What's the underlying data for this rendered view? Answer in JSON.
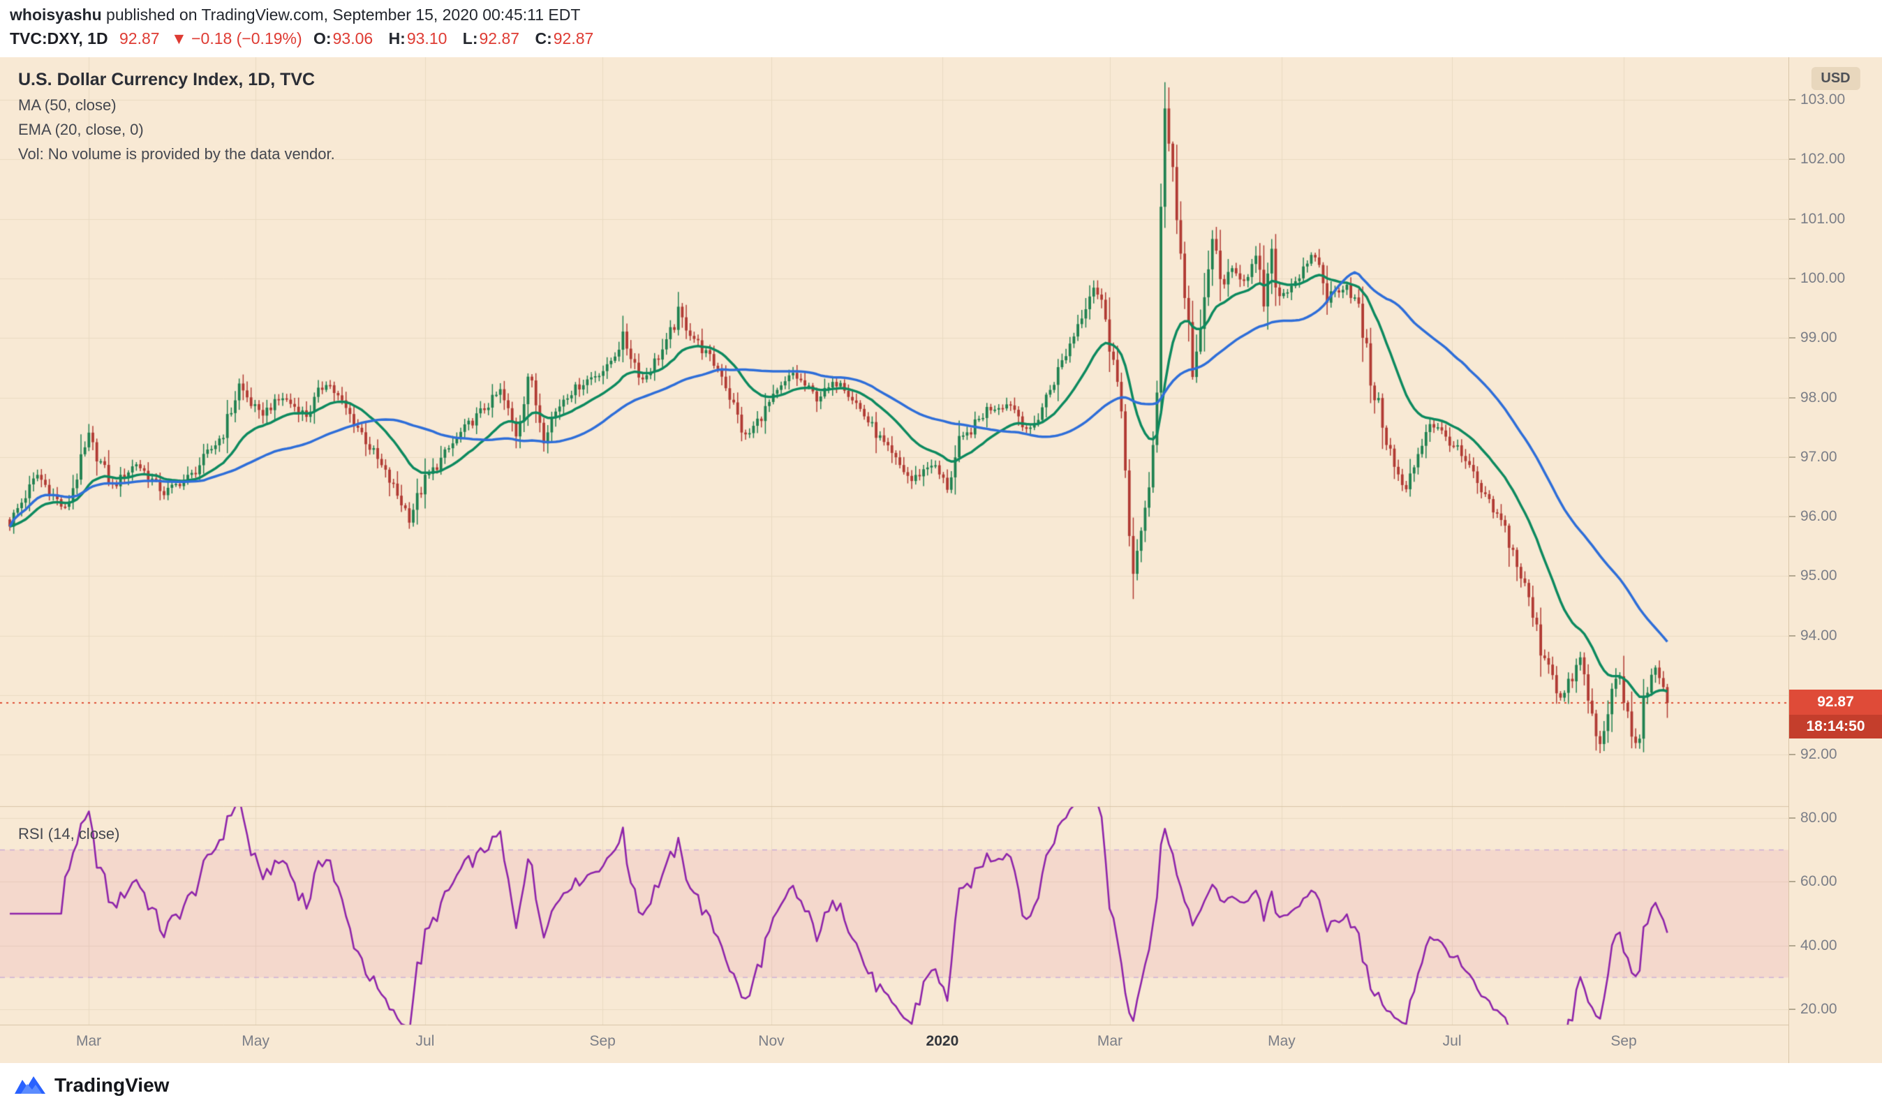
{
  "header": {
    "author": "whoisyashu",
    "published_suffix": " published on TradingView.com, September 15, 2020 00:45:11 EDT",
    "symbol_line": {
      "symbol": "TVC:DXY, 1D",
      "last": "92.87",
      "change": "▼ −0.18 (−0.19%)",
      "o_label": "O:",
      "o": "93.06",
      "h_label": "H:",
      "h": "93.10",
      "l_label": "L:",
      "l": "92.87",
      "c_label": "C:",
      "c": "92.87"
    }
  },
  "legend": {
    "title": "U.S. Dollar Currency Index, 1D, TVC",
    "ma": "MA (50, close)",
    "ema": "EMA (20, close, 0)",
    "vol": "Vol: No volume is provided by the data vendor.",
    "rsi": "RSI (14, close)"
  },
  "axis": {
    "currency": "USD",
    "price_ticks": [
      103,
      102,
      101,
      100,
      99,
      98,
      97,
      96,
      95,
      94,
      92
    ],
    "last_price_badge": "92.87",
    "countdown_badge": "18:14:50",
    "rsi_ticks": [
      80,
      60,
      40,
      20
    ],
    "time_ticks": [
      {
        "label": "Mar",
        "f": 0.0496,
        "major": false
      },
      {
        "label": "May",
        "f": 0.1429,
        "major": false
      },
      {
        "label": "Jul",
        "f": 0.2377,
        "major": false
      },
      {
        "label": "Sep",
        "f": 0.3369,
        "major": false
      },
      {
        "label": "Nov",
        "f": 0.4313,
        "major": false
      },
      {
        "label": "2020",
        "f": 0.5269,
        "major": true
      },
      {
        "label": "Mar",
        "f": 0.6206,
        "major": false
      },
      {
        "label": "May",
        "f": 0.7166,
        "major": false
      },
      {
        "label": "Jul",
        "f": 0.8119,
        "major": false
      },
      {
        "label": "Sep",
        "f": 0.9079,
        "major": false
      }
    ]
  },
  "footer": {
    "brand": "TradingView"
  },
  "colors": {
    "chart_bg": "#f8e9d4",
    "grid": "#eadbc2",
    "separator": "#d9c5a8",
    "candle_up": "#1f8150",
    "candle_down": "#b13a33",
    "ma": "#2e6ed9",
    "ema": "#0d8a5f",
    "rsi": "#8e24aa",
    "rsi_band_fill": "rgba(213,65,135,0.10)",
    "rsi_band_edge": "#cdaed6",
    "last_price_line": "#df4e34",
    "badge_price_bg": "#df4b38",
    "badge_countdown_bg": "#c43e2c",
    "axis_text": "#7b7e87"
  },
  "chart_data": {
    "type": "candlestick",
    "symbol": "TVC:DXY",
    "timeframe": "1D",
    "title": "U.S. Dollar Currency Index, 1D, TVC",
    "last": {
      "open": 93.06,
      "high": 93.1,
      "low": 92.87,
      "close": 92.87,
      "change": -0.18,
      "change_pct": -0.19
    },
    "x_range": [
      "Feb 2019",
      "Sep 14 2020"
    ],
    "ylim": [
      91.5,
      103.7
    ],
    "price_gridlines": [
      92,
      93,
      94,
      95,
      96,
      97,
      98,
      99,
      100,
      101,
      102,
      103
    ],
    "n_bars": 420,
    "indicators": {
      "ma": {
        "period": 50,
        "source": "close",
        "color": "#2e6ed9"
      },
      "ema": {
        "period": 20,
        "source": "close",
        "offset": 0,
        "color": "#0d8a5f"
      },
      "rsi": {
        "period": 14,
        "source": "close",
        "bands": [
          30,
          70
        ],
        "range": [
          0,
          100
        ],
        "rsi_ylim": [
          13,
          80
        ],
        "color": "#8e24aa"
      }
    },
    "series_anchors": [
      [
        0,
        95.9
      ],
      [
        7,
        96.7
      ],
      [
        14,
        96.1
      ],
      [
        20,
        97.3
      ],
      [
        26,
        96.5
      ],
      [
        32,
        96.9
      ],
      [
        39,
        96.4
      ],
      [
        46,
        96.7
      ],
      [
        54,
        97.4
      ],
      [
        58,
        98.2
      ],
      [
        63,
        97.7
      ],
      [
        69,
        98.0
      ],
      [
        75,
        97.7
      ],
      [
        80,
        98.3
      ],
      [
        89,
        97.4
      ],
      [
        96,
        96.6
      ],
      [
        101,
        96.0
      ],
      [
        105,
        96.6
      ],
      [
        114,
        97.4
      ],
      [
        124,
        98.1
      ],
      [
        128,
        97.4
      ],
      [
        131,
        98.4
      ],
      [
        135,
        97.4
      ],
      [
        140,
        98.0
      ],
      [
        146,
        98.3
      ],
      [
        151,
        98.5
      ],
      [
        155,
        99.0
      ],
      [
        160,
        98.3
      ],
      [
        166,
        98.9
      ],
      [
        169,
        99.4
      ],
      [
        174,
        98.9
      ],
      [
        180,
        98.4
      ],
      [
        186,
        97.3
      ],
      [
        192,
        97.9
      ],
      [
        198,
        98.4
      ],
      [
        204,
        98.0
      ],
      [
        210,
        98.3
      ],
      [
        216,
        97.7
      ],
      [
        222,
        97.1
      ],
      [
        228,
        96.6
      ],
      [
        233,
        96.9
      ],
      [
        237,
        96.5
      ],
      [
        240,
        97.2
      ],
      [
        247,
        97.8
      ],
      [
        253,
        97.9
      ],
      [
        258,
        97.4
      ],
      [
        262,
        98.0
      ],
      [
        268,
        98.9
      ],
      [
        272,
        99.6
      ],
      [
        274,
        99.9
      ],
      [
        277,
        99.4
      ],
      [
        280,
        98.2
      ],
      [
        282,
        96.8
      ],
      [
        284,
        95.0
      ],
      [
        286,
        95.6
      ],
      [
        288,
        96.6
      ],
      [
        290,
        98.0
      ],
      [
        291,
        101.0
      ],
      [
        292,
        102.8
      ],
      [
        294,
        102.0
      ],
      [
        295,
        101.0
      ],
      [
        297,
        99.8
      ],
      [
        299,
        98.5
      ],
      [
        301,
        99.0
      ],
      [
        304,
        100.7
      ],
      [
        306,
        99.9
      ],
      [
        309,
        100.1
      ],
      [
        312,
        100.0
      ],
      [
        315,
        100.3
      ],
      [
        317,
        99.6
      ],
      [
        319,
        100.3
      ],
      [
        321,
        99.7
      ],
      [
        324,
        99.9
      ],
      [
        328,
        100.2
      ],
      [
        330,
        100.4
      ],
      [
        333,
        99.7
      ],
      [
        338,
        99.9
      ],
      [
        341,
        99.5
      ],
      [
        344,
        98.3
      ],
      [
        347,
        97.6
      ],
      [
        350,
        96.8
      ],
      [
        353,
        96.4
      ],
      [
        356,
        97.1
      ],
      [
        359,
        97.6
      ],
      [
        362,
        97.4
      ],
      [
        365,
        97.2
      ],
      [
        369,
        96.8
      ],
      [
        372,
        96.4
      ],
      [
        375,
        96.1
      ],
      [
        378,
        95.8
      ],
      [
        381,
        95.2
      ],
      [
        384,
        94.6
      ],
      [
        387,
        93.8
      ],
      [
        390,
        93.4
      ],
      [
        392,
        92.9
      ],
      [
        395,
        93.3
      ],
      [
        397,
        93.6
      ],
      [
        400,
        92.6
      ],
      [
        402,
        92.1
      ],
      [
        404,
        92.9
      ],
      [
        407,
        93.3
      ],
      [
        409,
        92.6
      ],
      [
        411,
        92.1
      ],
      [
        413,
        92.8
      ],
      [
        415,
        93.5
      ],
      [
        417,
        93.2
      ],
      [
        419,
        92.87
      ]
    ]
  }
}
